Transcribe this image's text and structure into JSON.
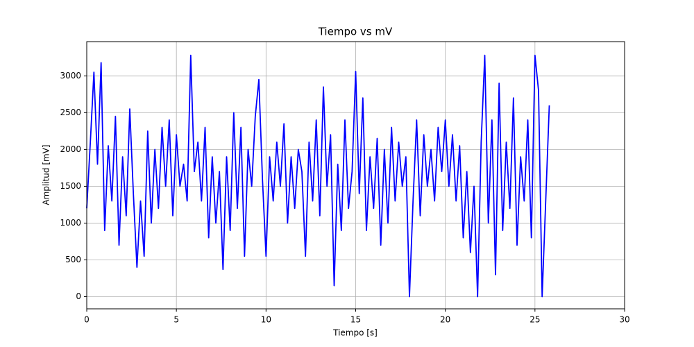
{
  "chart_data": {
    "type": "line",
    "title": "Tiempo vs mV",
    "x_label": "Tiempo [s]",
    "y_label": "Amplitud [mV]",
    "x": [
      0.0,
      0.2,
      0.4,
      0.6,
      0.8,
      1.0,
      1.2,
      1.4,
      1.6,
      1.8,
      2.0,
      2.2,
      2.4,
      2.6,
      2.8,
      3.0,
      3.2,
      3.4,
      3.6,
      3.8,
      4.0,
      4.2,
      4.4,
      4.6,
      4.8,
      5.0,
      5.2,
      5.4,
      5.6,
      5.8,
      6.0,
      6.2,
      6.4,
      6.6,
      6.8,
      7.0,
      7.2,
      7.4,
      7.6,
      7.8,
      8.0,
      8.2,
      8.4,
      8.6,
      8.8,
      9.0,
      9.2,
      9.4,
      9.6,
      9.8,
      10.0,
      10.2,
      10.4,
      10.6,
      10.8,
      11.0,
      11.2,
      11.4,
      11.6,
      11.8,
      12.0,
      12.2,
      12.4,
      12.6,
      12.8,
      13.0,
      13.2,
      13.4,
      13.6,
      13.8,
      14.0,
      14.2,
      14.4,
      14.6,
      14.8,
      15.0,
      15.2,
      15.4,
      15.6,
      15.8,
      16.0,
      16.2,
      16.4,
      16.6,
      16.8,
      17.0,
      17.2,
      17.4,
      17.6,
      17.8,
      18.0,
      18.2,
      18.4,
      18.6,
      18.8,
      19.0,
      19.2,
      19.4,
      19.6,
      19.8,
      20.0,
      20.2,
      20.4,
      20.6,
      20.8,
      21.0,
      21.2,
      21.4,
      21.6,
      21.8,
      22.0,
      22.2,
      22.4,
      22.6,
      22.8,
      23.0,
      23.2,
      23.4,
      23.6,
      23.8,
      24.0,
      24.2,
      24.4,
      24.6,
      24.8,
      25.0,
      25.2,
      25.4,
      25.6,
      25.8
    ],
    "values": [
      1200,
      2100,
      3050,
      1800,
      3180,
      900,
      2050,
      1300,
      2450,
      700,
      1900,
      1100,
      2550,
      1400,
      400,
      1300,
      550,
      2250,
      1000,
      2000,
      1200,
      2300,
      1500,
      2400,
      1100,
      2200,
      1500,
      1800,
      1300,
      3280,
      1700,
      2100,
      1300,
      2300,
      800,
      1900,
      1000,
      1700,
      370,
      1900,
      900,
      2500,
      1200,
      2300,
      550,
      2000,
      1500,
      2450,
      2950,
      1600,
      550,
      1900,
      1300,
      2100,
      1500,
      2350,
      1000,
      1900,
      1200,
      2000,
      1700,
      550,
      2100,
      1300,
      2400,
      1100,
      2850,
      1500,
      2200,
      150,
      1800,
      900,
      2400,
      1200,
      1700,
      3060,
      1400,
      2700,
      900,
      1900,
      1200,
      2150,
      700,
      2000,
      1000,
      2300,
      1300,
      2100,
      1500,
      1900,
      0,
      1300,
      2400,
      1100,
      2200,
      1500,
      2000,
      1300,
      2300,
      1700,
      2400,
      1500,
      2200,
      1300,
      2050,
      800,
      1700,
      600,
      1500,
      0,
      2100,
      3280,
      1000,
      2400,
      300,
      2900,
      900,
      2100,
      1200,
      2700,
      700,
      1900,
      1300,
      2400,
      800,
      3280,
      2800,
      0,
      1300,
      2600
    ],
    "color": "#0000ff",
    "xlim": [
      0,
      30
    ],
    "ylim": [
      -165,
      3465
    ],
    "xticks": [
      0,
      5,
      10,
      15,
      20,
      25,
      30
    ],
    "yticks": [
      0,
      500,
      1000,
      1500,
      2000,
      2500,
      3000
    ],
    "grid": true
  }
}
